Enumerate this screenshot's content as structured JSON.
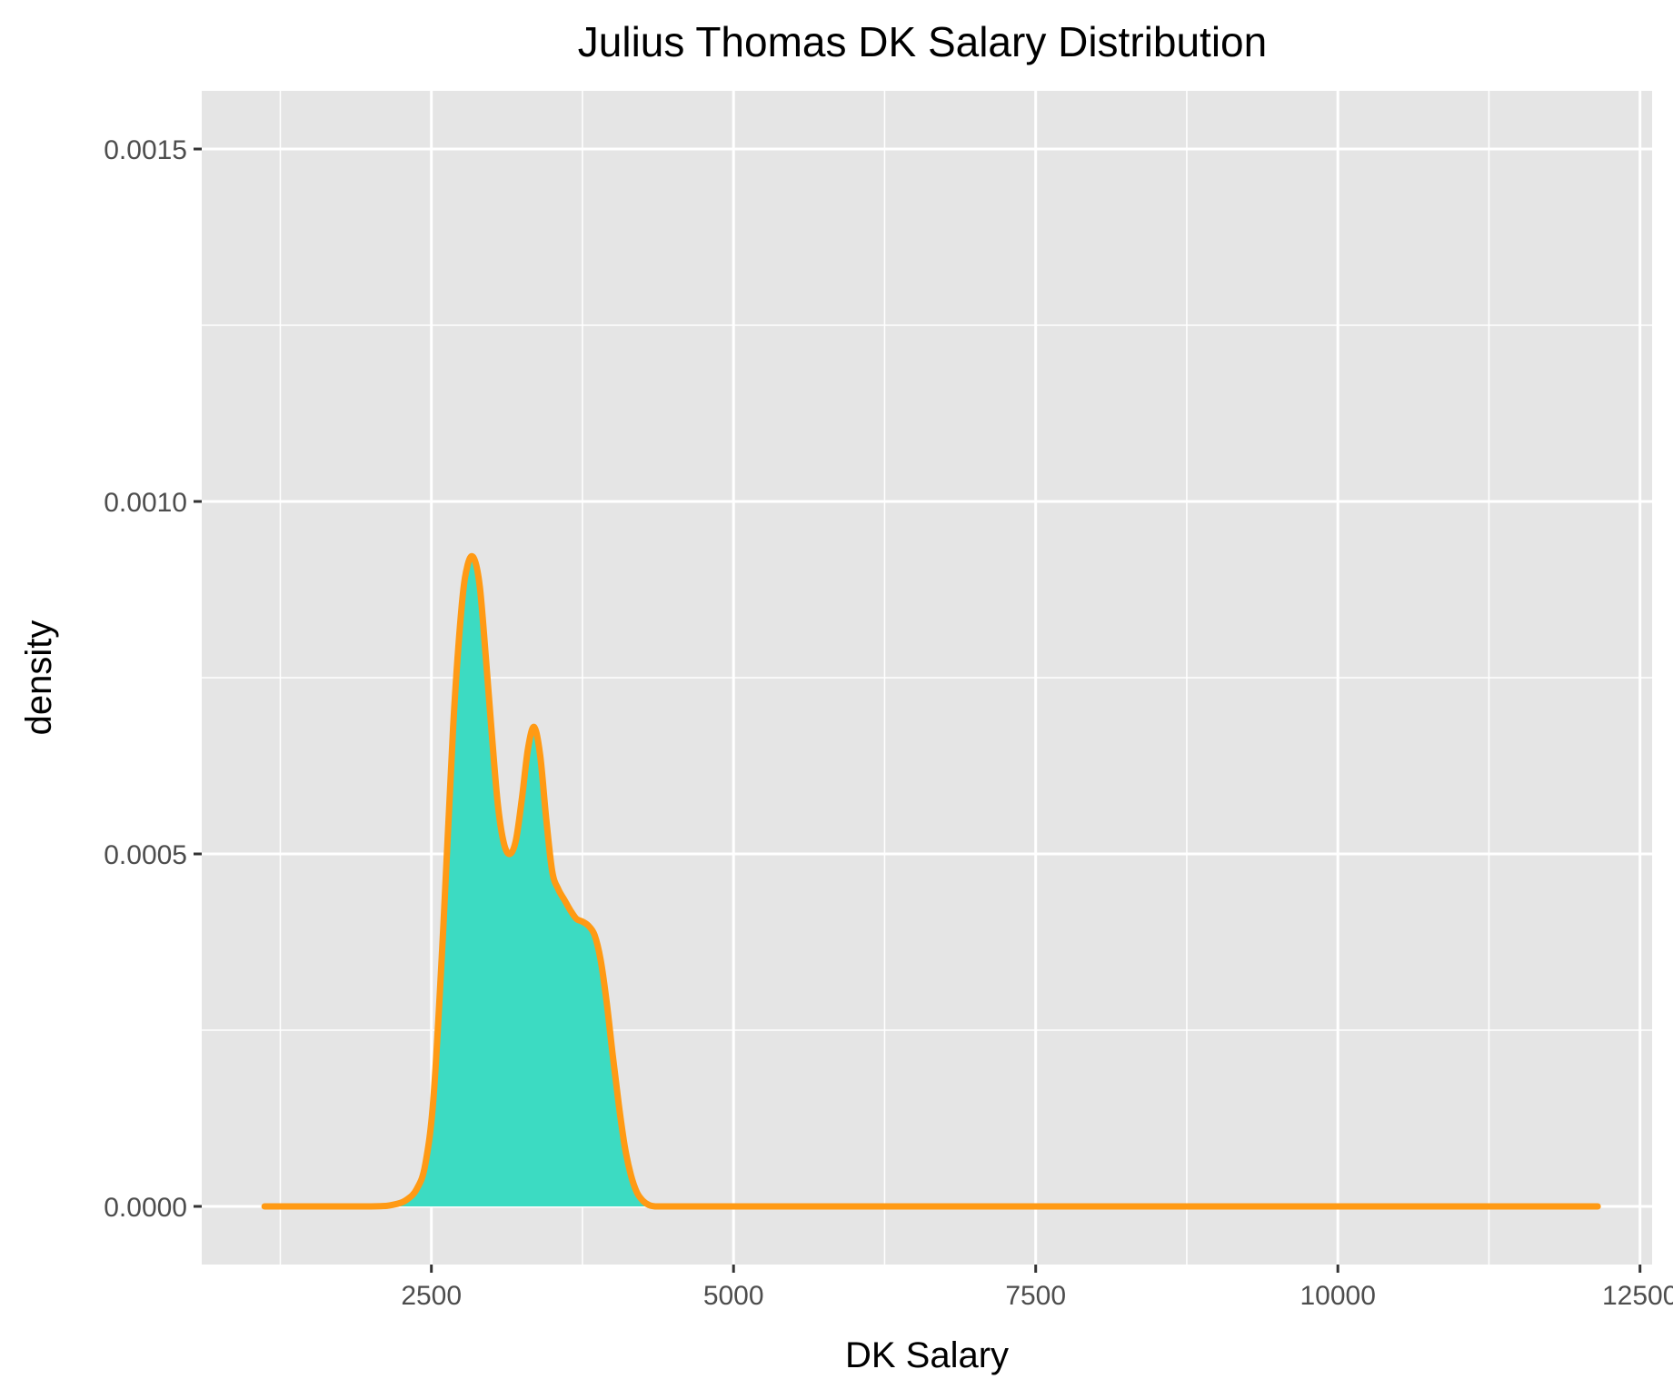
{
  "chart_data": {
    "type": "area",
    "title": "Julius Thomas DK Salary Distribution",
    "xlabel": "DK Salary",
    "ylabel": "density",
    "xlim": [
      600,
      12600
    ],
    "ylim": [
      -8.25e-05,
      0.0015825
    ],
    "x_ticks": [
      2500,
      5000,
      7500,
      10000,
      12500
    ],
    "x_tick_labels": [
      "2500",
      "5000",
      "7500",
      "10000",
      "12500"
    ],
    "x_minor_ticks": [
      1250,
      3750,
      6250,
      8750,
      11250
    ],
    "y_ticks": [
      0.0,
      0.0005,
      0.001,
      0.0015
    ],
    "y_tick_labels": [
      "0.0000",
      "0.0005",
      "0.0010",
      "0.0015"
    ],
    "y_minor_ticks": [
      0.00025,
      0.00075,
      0.00125
    ],
    "grid": true,
    "colors": {
      "panel_background": "#e5e5e5",
      "grid_line": "#ffffff",
      "fill": "#3cdbc2",
      "line": "#ff9a14"
    },
    "series": [
      {
        "x": [
          1120,
          2000,
          2200,
          2300,
          2380,
          2450,
          2520,
          2600,
          2680,
          2750,
          2800,
          2850,
          2900,
          2950,
          3000,
          3050,
          3100,
          3150,
          3200,
          3250,
          3300,
          3350,
          3400,
          3450,
          3500,
          3550,
          3600,
          3650,
          3700,
          3750,
          3800,
          3850,
          3900,
          3950,
          4000,
          4050,
          4100,
          4150,
          4200,
          4250,
          4300,
          4350,
          4400,
          4450,
          4500,
          4550,
          4600,
          4650,
          4700,
          4800,
          5000,
          12150
        ],
        "y": [
          0,
          0,
          3e-06,
          1e-05,
          2.5e-05,
          6e-05,
          0.00016,
          0.0004,
          0.00068,
          0.00085,
          0.00091,
          0.00092,
          0.00088,
          0.00078,
          0.00067,
          0.00057,
          0.000515,
          0.0005,
          0.00052,
          0.00058,
          0.00065,
          0.00068,
          0.00064,
          0.00055,
          0.000475,
          0.00045,
          0.000435,
          0.00042,
          0.000408,
          0.000404,
          0.000398,
          0.000385,
          0.00035,
          0.00029,
          0.000215,
          0.000145,
          8.5e-05,
          4.5e-05,
          2e-05,
          8e-06,
          2e-06,
          0,
          0,
          0,
          0,
          0,
          0,
          0,
          0,
          0,
          0,
          0
        ]
      }
    ]
  }
}
